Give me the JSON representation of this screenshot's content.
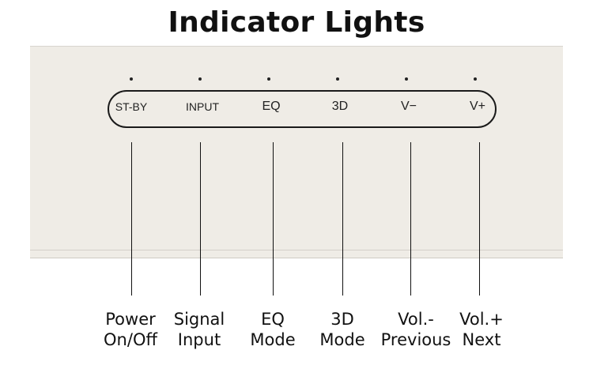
{
  "title": "Indicator Lights",
  "buttons": [
    {
      "label": "ST-BY",
      "caption_line1": "Power",
      "caption_line2": "On/Off"
    },
    {
      "label": "INPUT",
      "caption_line1": "Signal",
      "caption_line2": "Input"
    },
    {
      "label": "EQ",
      "caption_line1": "EQ",
      "caption_line2": "Mode"
    },
    {
      "label": "3D",
      "caption_line1": "3D",
      "caption_line2": "Mode"
    },
    {
      "label": "V−",
      "caption_line1": "Vol.-",
      "caption_line2": "Previous"
    },
    {
      "label": "V+",
      "caption_line1": "Vol.+",
      "caption_line2": "Next"
    }
  ]
}
